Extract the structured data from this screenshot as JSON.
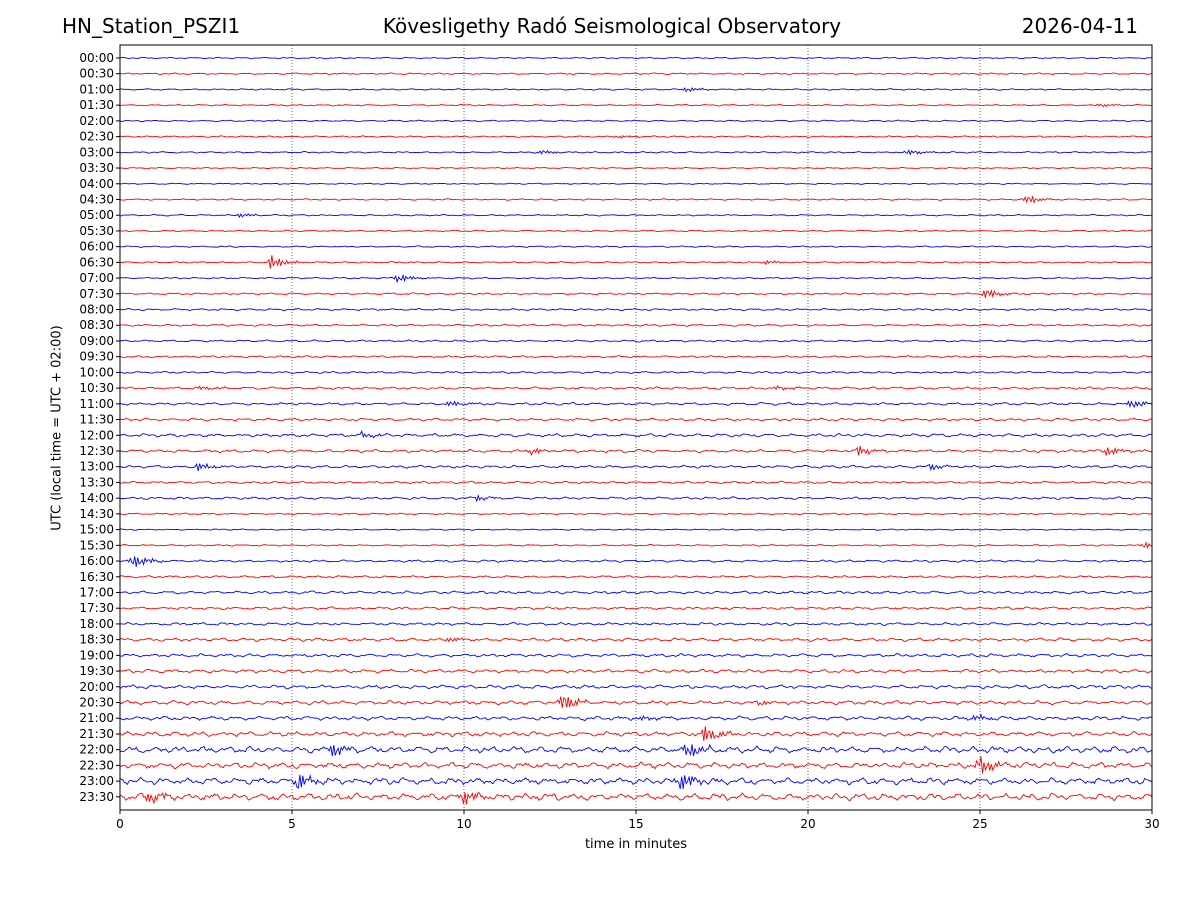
{
  "header": {
    "station": "HN_Station_PSZI1",
    "observatory": "Kövesligethy Radó Seismological Observatory",
    "date": "2026-04-11"
  },
  "chart_data": {
    "type": "line",
    "title": "Kövesligethy Radó Seismological Observatory",
    "xlabel": "time in minutes",
    "ylabel": "UTC (local time = UTC + 02:00)",
    "xlim": [
      0,
      30
    ],
    "xticks": [
      "0",
      "5",
      "10",
      "15",
      "20",
      "25",
      "30"
    ],
    "grid": "vertical dotted lines at 5-minute ticks",
    "colors": {
      "even_rows": "#0000ff",
      "odd_rows": "#ff0000"
    },
    "rows": [
      "00:00",
      "00:30",
      "01:00",
      "01:30",
      "02:00",
      "02:30",
      "03:00",
      "03:30",
      "04:00",
      "04:30",
      "05:00",
      "05:30",
      "06:00",
      "06:30",
      "07:00",
      "07:30",
      "08:00",
      "08:30",
      "09:00",
      "09:30",
      "10:00",
      "10:30",
      "11:00",
      "11:30",
      "12:00",
      "12:30",
      "13:00",
      "13:30",
      "14:00",
      "14:30",
      "15:00",
      "15:30",
      "16:00",
      "16:30",
      "17:00",
      "17:30",
      "18:00",
      "18:30",
      "19:00",
      "19:30",
      "20:00",
      "20:30",
      "21:00",
      "21:30",
      "22:00",
      "22:30",
      "23:00",
      "23:30"
    ],
    "noise_level": [
      0.6,
      0.6,
      0.6,
      0.6,
      0.6,
      0.6,
      0.6,
      0.5,
      0.5,
      0.6,
      0.6,
      0.6,
      0.6,
      0.6,
      0.6,
      0.7,
      0.8,
      0.8,
      0.8,
      0.8,
      0.8,
      1.0,
      1.0,
      1.1,
      1.3,
      1.2,
      1.1,
      0.9,
      1.0,
      0.6,
      0.5,
      0.6,
      0.9,
      0.9,
      1.2,
      1.1,
      1.1,
      1.3,
      1.3,
      1.4,
      1.5,
      1.6,
      1.6,
      1.9,
      2.6,
      2.4,
      2.6,
      2.8
    ],
    "events": [
      {
        "row": "01:00",
        "minute": 16.5,
        "amp": 2.5
      },
      {
        "row": "01:30",
        "minute": 28.5,
        "amp": 1.5
      },
      {
        "row": "02:30",
        "minute": 14.5,
        "amp": 1.5
      },
      {
        "row": "03:00",
        "minute": 12.3,
        "amp": 2.0
      },
      {
        "row": "03:00",
        "minute": 22.9,
        "amp": 3.0
      },
      {
        "row": "04:30",
        "minute": 26.4,
        "amp": 4.0
      },
      {
        "row": "05:00",
        "minute": 3.5,
        "amp": 2.0
      },
      {
        "row": "06:30",
        "minute": 4.4,
        "amp": 7.0
      },
      {
        "row": "06:30",
        "minute": 18.8,
        "amp": 2.0
      },
      {
        "row": "07:00",
        "minute": 8.1,
        "amp": 4.0
      },
      {
        "row": "07:30",
        "minute": 25.2,
        "amp": 5.0
      },
      {
        "row": "10:30",
        "minute": 2.4,
        "amp": 2.0
      },
      {
        "row": "10:30",
        "minute": 19.1,
        "amp": 2.0
      },
      {
        "row": "11:00",
        "minute": 9.6,
        "amp": 3.0
      },
      {
        "row": "11:00",
        "minute": 29.4,
        "amp": 4.0
      },
      {
        "row": "12:00",
        "minute": 7.0,
        "amp": 3.0
      },
      {
        "row": "12:30",
        "minute": 12.0,
        "amp": 3.0
      },
      {
        "row": "12:30",
        "minute": 21.5,
        "amp": 5.0
      },
      {
        "row": "12:30",
        "minute": 28.7,
        "amp": 4.0
      },
      {
        "row": "13:00",
        "minute": 2.3,
        "amp": 4.0
      },
      {
        "row": "13:00",
        "minute": 23.6,
        "amp": 2.5
      },
      {
        "row": "14:00",
        "minute": 10.4,
        "amp": 2.5
      },
      {
        "row": "15:30",
        "minute": 29.8,
        "amp": 3.0
      },
      {
        "row": "16:00",
        "minute": 0.4,
        "amp": 7.0
      },
      {
        "row": "18:30",
        "minute": 9.6,
        "amp": 3.0
      },
      {
        "row": "20:30",
        "minute": 12.9,
        "amp": 8.0
      },
      {
        "row": "20:30",
        "minute": 18.6,
        "amp": 2.5
      },
      {
        "row": "21:00",
        "minute": 15.1,
        "amp": 3.0
      },
      {
        "row": "21:00",
        "minute": 24.9,
        "amp": 4.0
      },
      {
        "row": "21:30",
        "minute": 17.0,
        "amp": 8.0
      },
      {
        "row": "22:00",
        "minute": 16.5,
        "amp": 8.0
      },
      {
        "row": "22:00",
        "minute": 6.2,
        "amp": 6.0
      },
      {
        "row": "22:30",
        "minute": 25.0,
        "amp": 9.0
      },
      {
        "row": "23:00",
        "minute": 5.2,
        "amp": 8.0
      },
      {
        "row": "23:00",
        "minute": 16.3,
        "amp": 8.0
      },
      {
        "row": "23:30",
        "minute": 10.0,
        "amp": 8.0
      },
      {
        "row": "23:30",
        "minute": 0.9,
        "amp": 6.0
      }
    ]
  }
}
